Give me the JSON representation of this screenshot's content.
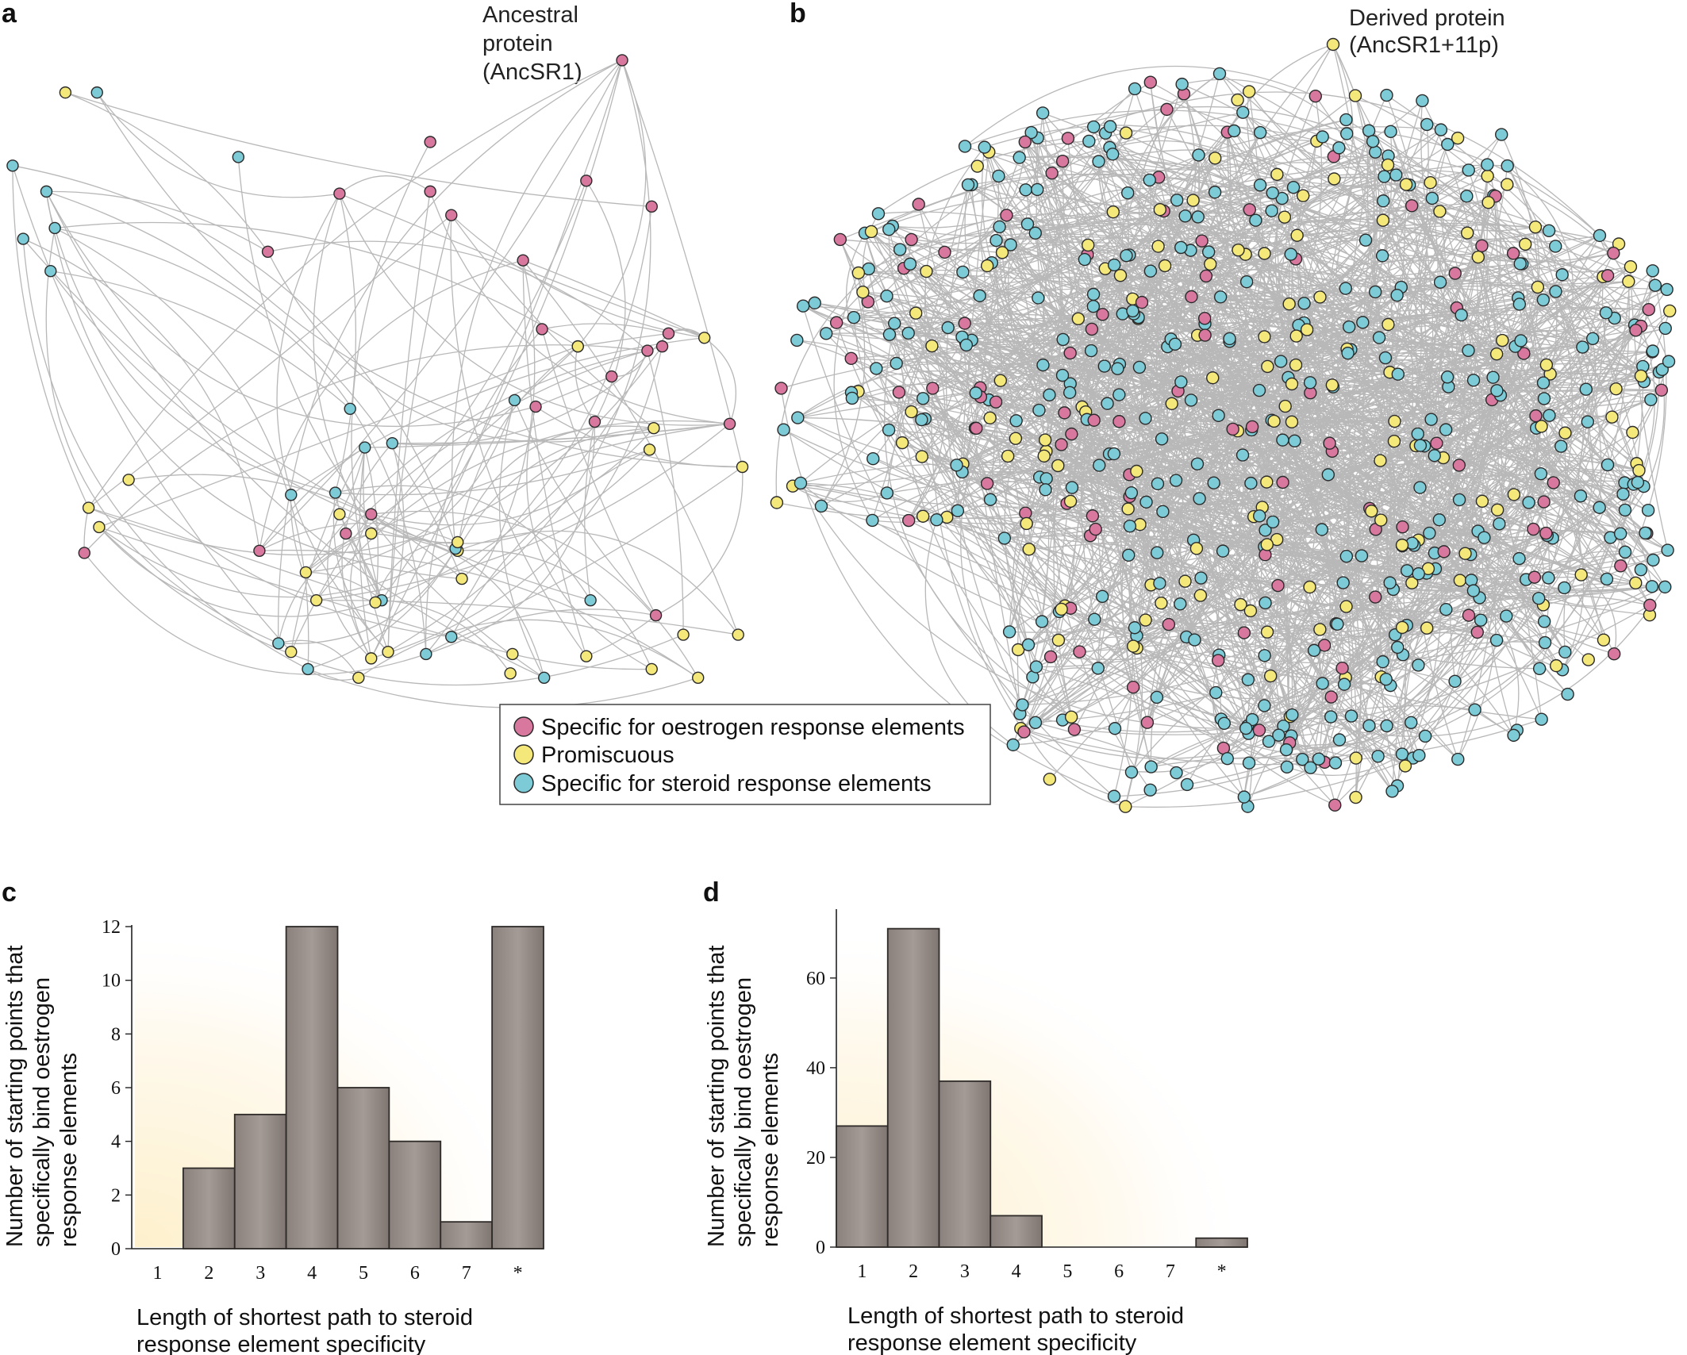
{
  "panels": {
    "a": {
      "letter": "a",
      "annotation_lines": [
        "Ancestral",
        "protein",
        "(AncSR1)"
      ]
    },
    "b": {
      "letter": "b",
      "annotation_lines": [
        "Derived protein",
        "(AncSR1+11p)"
      ]
    },
    "c": {
      "letter": "c"
    },
    "d": {
      "letter": "d"
    }
  },
  "legend": [
    {
      "label": "Specific for oestrogen response elements",
      "color": "#d9789f"
    },
    {
      "label": "Promiscuous",
      "color": "#f5e87a"
    },
    {
      "label": "Specific for steroid response elements",
      "color": "#7ccbd6"
    }
  ],
  "colors": {
    "bar_fill": "#8e8581",
    "bar_stroke": "#2e2b29",
    "edge": "#b8b8b8",
    "node_stroke": "#2a2a2a",
    "glow": "#fdf1d2"
  },
  "chart_data": [
    {
      "panel": "c",
      "type": "bar",
      "categories": [
        "1",
        "2",
        "3",
        "4",
        "5",
        "6",
        "7",
        "*"
      ],
      "values": [
        0,
        3,
        5,
        12,
        6,
        4,
        1,
        12
      ],
      "ylabel": "Number of starting points that specifically bind oestrogen response elements",
      "ylabel_lines": [
        "Number of starting points that",
        "specifically bind oestrogen",
        "response elements"
      ],
      "xlabel": "Length of shortest path to steroid response element specificity",
      "xlabel_lines": [
        "Length of shortest path to steroid",
        "response element specificity"
      ],
      "yticks": [
        0,
        2,
        4,
        6,
        8,
        10,
        12
      ],
      "ylim": [
        0,
        12
      ]
    },
    {
      "panel": "d",
      "type": "bar",
      "categories": [
        "1",
        "2",
        "3",
        "4",
        "5",
        "6",
        "7",
        "*"
      ],
      "values": [
        27,
        71,
        37,
        7,
        0,
        0,
        0,
        2
      ],
      "ylabel": "Number of starting points that specifically bind oestrogen response elements",
      "ylabel_lines": [
        "Number of starting points that",
        "specifically bind oestrogen",
        "response elements"
      ],
      "xlabel": "Length of shortest path to steroid response element specificity",
      "xlabel_lines": [
        "Length of shortest path to steroid",
        "response element specificity"
      ],
      "yticks": [
        0,
        20,
        40,
        60
      ],
      "ylim": [
        0,
        75
      ]
    }
  ]
}
